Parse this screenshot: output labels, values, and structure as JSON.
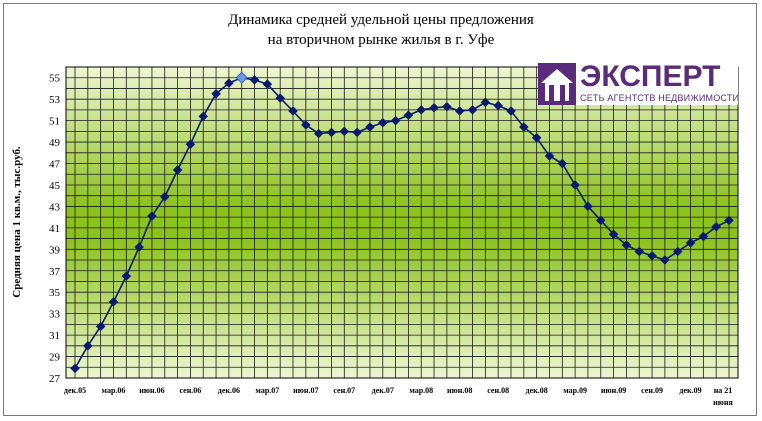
{
  "chart_data": {
    "type": "line",
    "title_lines": [
      "Динамика средней удельной цены предложения",
      "на вторичном рынке жилья в г. Уфе"
    ],
    "xlabel": "",
    "ylabel": "Средняя цена 1 кв.м., тыс.руб.",
    "ylim": [
      27,
      56
    ],
    "yticks": [
      27,
      29,
      31,
      33,
      35,
      37,
      39,
      41,
      43,
      45,
      47,
      49,
      51,
      53,
      55
    ],
    "xtick_labels": [
      "дек.05",
      "мар.06",
      "июн.06",
      "сен.06",
      "дек.06",
      "мар.07",
      "июн.07",
      "сен.07",
      "дек.07",
      "мар.08",
      "июн.08",
      "сен.08",
      "дек.08",
      "мар.09",
      "июн.09",
      "сен.09",
      "дек.09",
      "на 21 июня"
    ],
    "grid": true,
    "series": [
      {
        "values": [
          27.9,
          30.0,
          31.8,
          34.1,
          36.5,
          39.2,
          42.1,
          43.9,
          46.4,
          48.8,
          51.4,
          53.5,
          54.5,
          55.0,
          54.8,
          54.4,
          53.1,
          51.9,
          50.6,
          49.8,
          49.9,
          50.0,
          49.9,
          50.4,
          50.8,
          51.0,
          51.5,
          52.0,
          52.2,
          52.3,
          51.9,
          52.0,
          52.7,
          52.4,
          51.9,
          50.4,
          49.4,
          47.7,
          47.0,
          45.0,
          43.0,
          41.7,
          40.4,
          39.4,
          38.8,
          38.4,
          38.0,
          38.8,
          39.6,
          40.2,
          41.1,
          41.7
        ],
        "highlight_index": 13,
        "color": "#0a1a6e",
        "highlight_color": "#6e97e8"
      }
    ]
  },
  "logo": {
    "word": "ЭКСПЕРТ",
    "subtitle": "СЕТЬ АГЕНТСТВ НЕДВИЖИМОСТИ"
  }
}
